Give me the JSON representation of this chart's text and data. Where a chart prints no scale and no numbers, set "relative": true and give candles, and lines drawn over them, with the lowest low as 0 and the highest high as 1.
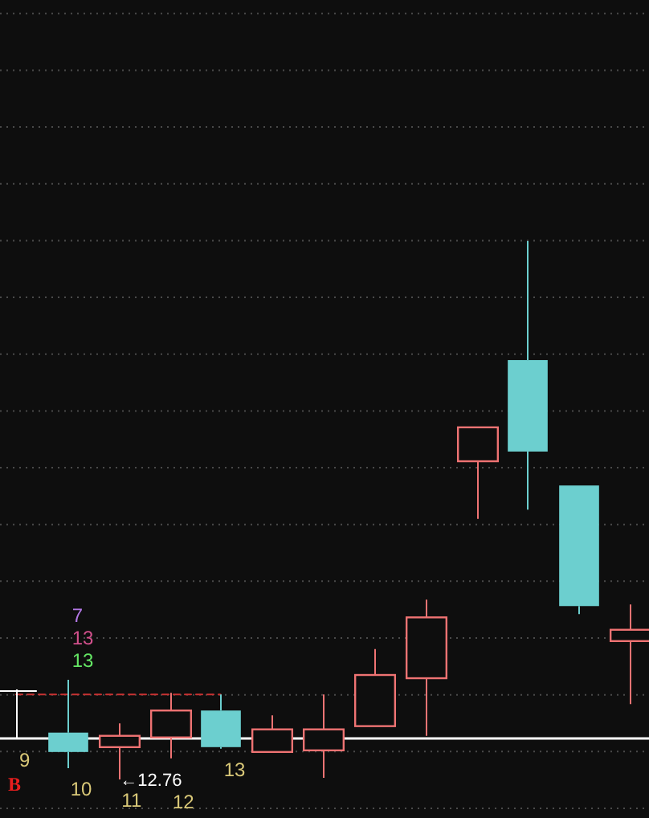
{
  "chart_data": {
    "type": "candlestick",
    "relative": true,
    "grid": true,
    "categories": [
      null,
      null,
      null,
      null,
      null,
      null,
      null,
      null,
      null,
      null,
      null,
      null,
      null
    ],
    "ohlc": [
      [
        0.164,
        0.167,
        0.075,
        0.164
      ],
      [
        0.087,
        0.185,
        0.021,
        0.051
      ],
      [
        0.06,
        0.104,
        0,
        0.081
      ],
      [
        0.078,
        0.161,
        0.039,
        0.128
      ],
      [
        0.128,
        0.158,
        0.057,
        0.06
      ],
      [
        0.051,
        0.119,
        0.051,
        0.093
      ],
      [
        0.054,
        0.158,
        0.003,
        0.093
      ],
      [
        0.099,
        0.242,
        0.099,
        0.194
      ],
      [
        0.188,
        0.334,
        0.081,
        0.301
      ],
      [
        0.591,
        0.654,
        0.484,
        0.654
      ],
      [
        0.779,
        1,
        0.501,
        0.609
      ],
      [
        0.546,
        0.546,
        0.307,
        0.322
      ],
      [
        0.257,
        0.325,
        0.14,
        0.278
      ]
    ],
    "colors": [
      "#ffffff",
      "#6ccfcf",
      "#ef7373",
      "#ef7373",
      "#6ccfcf",
      "#ef7373",
      "#ef7373",
      "#ef7373",
      "#ef7373",
      "#ef7373",
      "#6ccfcf",
      "#6ccfcf",
      "#ef7373"
    ],
    "value_labels": [
      "9",
      "10",
      "11",
      "12",
      "13",
      null,
      null,
      null,
      null,
      null,
      null,
      null,
      null
    ],
    "series": [
      {
        "type": "line",
        "values": [
          0.158,
          0.158,
          0.158,
          0.158,
          0.158,
          null,
          null,
          null,
          null,
          null,
          null,
          null,
          null
        ],
        "color": "#c83232",
        "line_style": "dashed"
      }
    ],
    "ref_lines": [
      {
        "axis": "y",
        "value": 0.078,
        "color": "#ffffff"
      }
    ],
    "annotations": [
      "←12.76",
      "7",
      "13",
      "13",
      "B"
    ]
  }
}
